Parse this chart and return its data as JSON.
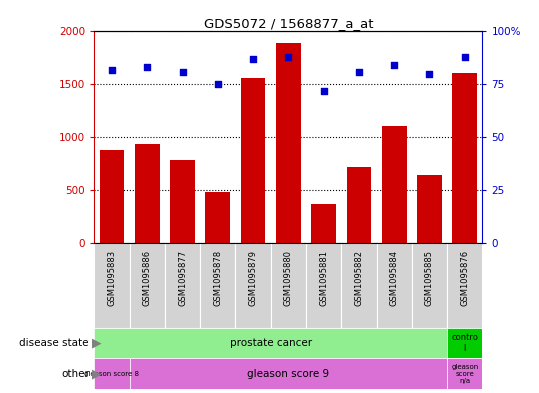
{
  "title": "GDS5072 / 1568877_a_at",
  "samples": [
    "GSM1095883",
    "GSM1095886",
    "GSM1095877",
    "GSM1095878",
    "GSM1095879",
    "GSM1095880",
    "GSM1095881",
    "GSM1095882",
    "GSM1095884",
    "GSM1095885",
    "GSM1095876"
  ],
  "counts": [
    880,
    940,
    790,
    480,
    1560,
    1890,
    370,
    720,
    1110,
    640,
    1610
  ],
  "percentile_ranks": [
    82,
    83,
    81,
    75,
    87,
    88,
    72,
    81,
    84,
    80,
    88
  ],
  "ylim_left": [
    0,
    2000
  ],
  "ylim_right": [
    0,
    100
  ],
  "yticks_left": [
    0,
    500,
    1000,
    1500,
    2000
  ],
  "yticks_right": [
    0,
    25,
    50,
    75,
    100
  ],
  "bar_color": "#cc0000",
  "dot_color": "#0000cc",
  "prostate_color": "#90ee90",
  "control_color": "#00cc00",
  "gleason_color": "#da70d6",
  "sample_box_color": "#d3d3d3",
  "background_color": "#ffffff",
  "left_axis_color": "#cc0000",
  "right_axis_color": "#0000cc",
  "gleason8_samples": [
    0
  ],
  "gleason9_samples": [
    1,
    2,
    3,
    4,
    5,
    6,
    7,
    8,
    9
  ],
  "gleasonna_samples": [
    10
  ],
  "control_samples": [
    10
  ]
}
